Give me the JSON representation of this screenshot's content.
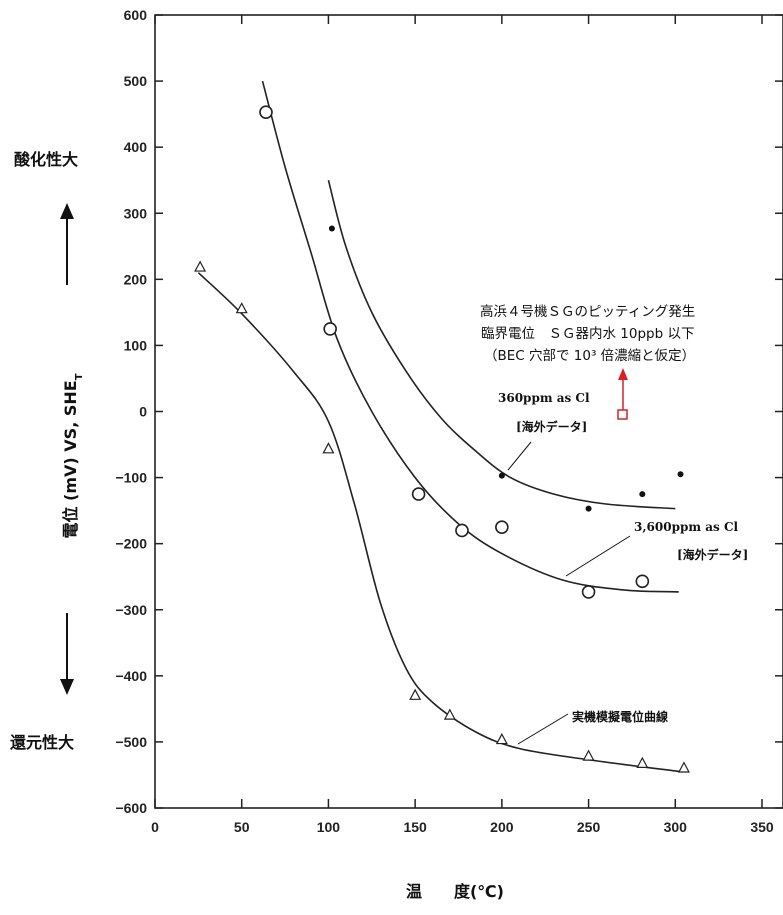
{
  "chart_data": {
    "type": "scatter",
    "xlabel": "温　　度(℃)",
    "ylabel": "電位 (mV) VS, SHE",
    "ylabel_subscript": "T",
    "xlim": [
      0,
      350
    ],
    "ylim": [
      -600,
      600
    ],
    "x_ticks": [
      "0",
      "50",
      "100",
      "150",
      "200",
      "250",
      "300",
      "350"
    ],
    "y_ticks": [
      "600",
      "500",
      "400",
      "300",
      "200",
      "100",
      "0",
      "−100",
      "−200",
      "−300",
      "−400",
      "−500",
      "−600"
    ],
    "y_side_labels": {
      "top": "酸化性大",
      "bottom": "還元性大"
    },
    "series": [
      {
        "name": "360ppm as Cl",
        "source_label": "[海外データ]",
        "marker": "filled-dot",
        "points": [
          [
            102,
            277
          ],
          [
            200,
            -97
          ],
          [
            250,
            -147
          ],
          [
            281,
            -125
          ],
          [
            303,
            -95
          ]
        ],
        "curve": [
          [
            100,
            350
          ],
          [
            110,
            250
          ],
          [
            125,
            150
          ],
          [
            145,
            60
          ],
          [
            165,
            -10
          ],
          [
            185,
            -60
          ],
          [
            205,
            -100
          ],
          [
            230,
            -125
          ],
          [
            260,
            -140
          ],
          [
            300,
            -147
          ]
        ]
      },
      {
        "name": "3,600ppm as Cl",
        "source_label": "[海外データ]",
        "marker": "open-circle",
        "points": [
          [
            64,
            453
          ],
          [
            101,
            125
          ],
          [
            152,
            -125
          ],
          [
            177,
            -180
          ],
          [
            200,
            -175
          ],
          [
            250,
            -273
          ],
          [
            281,
            -257
          ]
        ],
        "curve": [
          [
            62,
            500
          ],
          [
            75,
            370
          ],
          [
            90,
            240
          ],
          [
            105,
            110
          ],
          [
            125,
            0
          ],
          [
            150,
            -100
          ],
          [
            175,
            -170
          ],
          [
            200,
            -215
          ],
          [
            235,
            -255
          ],
          [
            270,
            -270
          ],
          [
            302,
            -273
          ]
        ]
      },
      {
        "name": "実機模擬電位曲線",
        "marker": "triangle",
        "points": [
          [
            26,
            218
          ],
          [
            50,
            155
          ],
          [
            100,
            -57
          ],
          [
            150,
            -430
          ],
          [
            170,
            -460
          ],
          [
            200,
            -497
          ],
          [
            250,
            -522
          ],
          [
            281,
            -533
          ],
          [
            305,
            -540
          ]
        ],
        "curve": [
          [
            25,
            210
          ],
          [
            50,
            148
          ],
          [
            80,
            60
          ],
          [
            100,
            -15
          ],
          [
            115,
            -140
          ],
          [
            130,
            -290
          ],
          [
            145,
            -390
          ],
          [
            160,
            -440
          ],
          [
            185,
            -485
          ],
          [
            210,
            -510
          ],
          [
            250,
            -527
          ],
          [
            303,
            -545
          ]
        ]
      }
    ],
    "annotation": {
      "lines": [
        "高浜４号機ＳＧのピッティング発生",
        "臨界電位　ＳＧ器内水 10ppb 以下",
        "（BEC 穴部で 10³ 倍濃縮と仮定）"
      ],
      "point": [
        270,
        0
      ],
      "color": "#d9202a"
    }
  }
}
